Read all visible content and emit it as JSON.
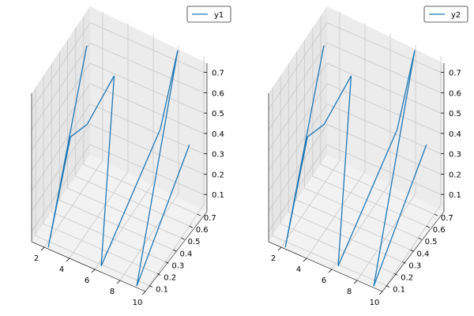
{
  "chart_data": [
    {
      "type": "line",
      "panel": "left",
      "legend": "y1",
      "legend_position": "top-right",
      "grid": true,
      "x_ticks": [
        "2",
        "4",
        "6",
        "8",
        "10"
      ],
      "y_ticks": [
        "0.1",
        "0.2",
        "0.3",
        "0.4",
        "0.5",
        "0.6",
        "0.7"
      ],
      "z_ticks": [
        "0.1",
        "0.2",
        "0.3",
        "0.4",
        "0.5",
        "0.6",
        "0.7"
      ],
      "xlim": [
        1,
        10
      ],
      "ylim": [
        0.05,
        0.78
      ],
      "zlim": [
        0.05,
        0.78
      ],
      "series": [
        {
          "name": "y1",
          "x": [
            1,
            2,
            3,
            4,
            5,
            6,
            7,
            8,
            9,
            10
          ],
          "y": [
            0.74,
            0.1,
            0.22,
            0.27,
            0.45,
            0.13,
            0.71,
            0.77,
            0.1,
            0.6
          ],
          "z": [
            0.61,
            0.02,
            0.52,
            0.58,
            0.74,
            0.02,
            0.38,
            0.76,
            0.02,
            0.45
          ]
        }
      ]
    },
    {
      "type": "line",
      "panel": "right",
      "legend": "y2",
      "legend_position": "top-right",
      "grid": true,
      "x_ticks": [
        "2",
        "4",
        "6",
        "8",
        "10"
      ],
      "y_ticks": [
        "0.1",
        "0.2",
        "0.3",
        "0.4",
        "0.5",
        "0.6",
        "0.7"
      ],
      "z_ticks": [
        "0.1",
        "0.2",
        "0.3",
        "0.4",
        "0.5",
        "0.6",
        "0.7"
      ],
      "xlim": [
        1,
        10
      ],
      "ylim": [
        0.05,
        0.78
      ],
      "zlim": [
        0.05,
        0.78
      ],
      "series": [
        {
          "name": "y2",
          "x": [
            1,
            2,
            3,
            4,
            5,
            6,
            7,
            8,
            9,
            10
          ],
          "y": [
            0.74,
            0.1,
            0.22,
            0.27,
            0.45,
            0.13,
            0.71,
            0.77,
            0.1,
            0.6
          ],
          "z": [
            0.61,
            0.02,
            0.52,
            0.58,
            0.74,
            0.02,
            0.38,
            0.76,
            0.02,
            0.45
          ]
        }
      ]
    }
  ],
  "styles": {
    "line_color": "#1f77b4",
    "grid_color": "#c8c8c8",
    "pane_left_color": "#e6e6e6",
    "pane_back_color": "#ececec",
    "pane_floor_color": "#f2f2f2",
    "axis_color": "#000000"
  }
}
